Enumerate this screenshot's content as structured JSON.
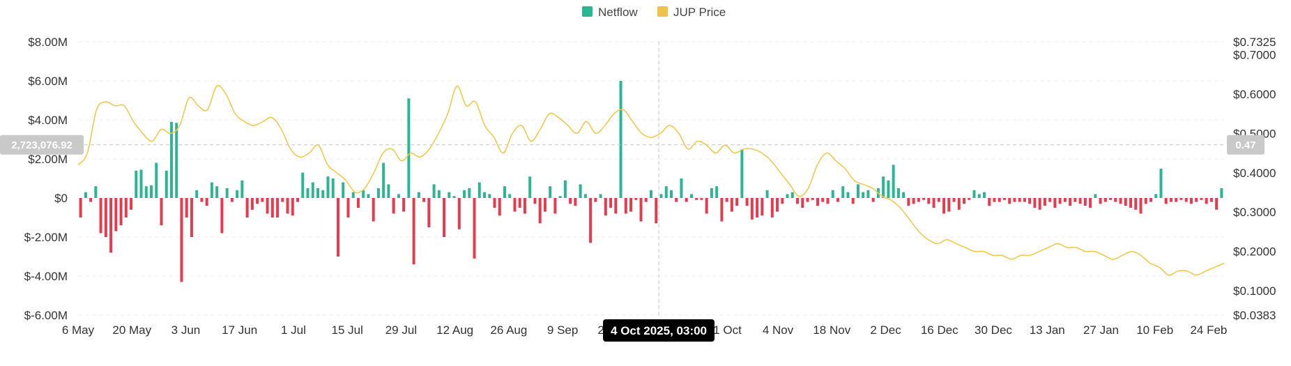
{
  "legend": [
    {
      "label": "Netflow",
      "color": "#2bb593",
      "icon": "square-swatch"
    },
    {
      "label": "JUP Price",
      "color": "#f0c24b",
      "icon": "square-swatch"
    }
  ],
  "chart_data": {
    "type": "bar+line",
    "left_axis": {
      "ticks": [
        {
          "value": 8000000,
          "label": "$8.00M"
        },
        {
          "value": 6000000,
          "label": "$6.00M"
        },
        {
          "value": 4000000,
          "label": "$4.00M"
        },
        {
          "value": 2000000,
          "label": "$2.00M"
        },
        {
          "value": 0,
          "label": "$0"
        },
        {
          "value": -2000000,
          "label": "$-2.00M"
        },
        {
          "value": -4000000,
          "label": "$-4.00M"
        },
        {
          "value": -6000000,
          "label": "$-6.00M"
        }
      ],
      "range": [
        -6000000,
        8000000
      ]
    },
    "right_axis": {
      "ticks": [
        {
          "value": 0.7325,
          "label": "$0.7325"
        },
        {
          "value": 0.7,
          "label": "$0.7000"
        },
        {
          "value": 0.6,
          "label": "$0.6000"
        },
        {
          "value": 0.5,
          "label": "$0.5000"
        },
        {
          "value": 0.4,
          "label": "$0.4000"
        },
        {
          "value": 0.3,
          "label": "$0.3000"
        },
        {
          "value": 0.2,
          "label": "$0.2000"
        },
        {
          "value": 0.1,
          "label": "$0.1000"
        },
        {
          "value": 0.0383,
          "label": "$0.0383"
        }
      ],
      "range": [
        0.0383,
        0.7325
      ]
    },
    "x_ticks": [
      "6 May",
      "20 May",
      "3 Jun",
      "17 Jun",
      "1 Jul",
      "15 Jul",
      "29 Jul",
      "12 Aug",
      "26 Aug",
      "9 Sep",
      "23 Sep",
      "7 Oct",
      "21 Oct",
      "4 Nov",
      "18 Nov",
      "2 Dec",
      "16 Dec",
      "30 Dec",
      "13 Jan",
      "27 Jan",
      "10 Feb",
      "24 Feb"
    ],
    "x_start": "2025-05-06",
    "x_end": "2026-02-28",
    "netflow_series": {
      "name": "Netflow",
      "color_positive": "#2bb593",
      "color_negative": "#e83a4e",
      "values": [
        -1000000,
        300000,
        -200000,
        600000,
        -1800000,
        -2000000,
        -2800000,
        -1700000,
        -1400000,
        -1000000,
        -600000,
        1400000,
        1450000,
        600000,
        650000,
        1800000,
        -1400000,
        1400000,
        3900000,
        3850000,
        -4300000,
        -1000000,
        -2000000,
        400000,
        -200000,
        -400000,
        800000,
        600000,
        -1800000,
        500000,
        -200000,
        400000,
        900000,
        -1000000,
        -600000,
        -300000,
        -200000,
        -800000,
        -1000000,
        -1000000,
        -200000,
        -800000,
        -900000,
        -200000,
        1300000,
        500000,
        800000,
        500000,
        400000,
        1100000,
        1000000,
        -3000000,
        800000,
        -1000000,
        300000,
        -500000,
        400000,
        200000,
        -1200000,
        500000,
        1800000,
        700000,
        -800000,
        200000,
        -700000,
        5100000,
        -3400000,
        300000,
        -200000,
        -1500000,
        700000,
        400000,
        -2000000,
        300000,
        100000,
        -1600000,
        400000,
        500000,
        -3100000,
        800000,
        300000,
        200000,
        -500000,
        -900000,
        600000,
        200000,
        -700000,
        -500000,
        -800000,
        1100000,
        -300000,
        -1300000,
        -700000,
        600000,
        -800000,
        100000,
        900000,
        -300000,
        -400000,
        700000,
        200000,
        -2300000,
        -200000,
        200000,
        -900000,
        -500000,
        -800000,
        6000000,
        -800000,
        -700000,
        -100000,
        -1200000,
        -200000,
        400000,
        -1300000,
        200000,
        600000,
        400000,
        -200000,
        1000000,
        -200000,
        200000,
        -100000,
        -100000,
        -800000,
        500000,
        600000,
        -1200000,
        -200000,
        -700000,
        -400000,
        2500000,
        -400000,
        -1100000,
        -1000000,
        -900000,
        400000,
        -1000000,
        -700000,
        -300000,
        200000,
        300000,
        -300000,
        -500000,
        -200000,
        -100000,
        -400000,
        -200000,
        -300000,
        400000,
        -200000,
        600000,
        300000,
        -300000,
        700000,
        300000,
        400000,
        -200000,
        500000,
        1100000,
        900000,
        1700000,
        500000,
        300000,
        -400000,
        -300000,
        -200000,
        -100000,
        -300000,
        -500000,
        -200000,
        -800000,
        -700000,
        -200000,
        -600000,
        -300000,
        -100000,
        400000,
        200000,
        300000,
        -400000,
        -200000,
        -200000,
        -100000,
        -300000,
        -200000,
        -200000,
        -200000,
        -300000,
        -500000,
        -600000,
        -400000,
        -200000,
        -500000,
        -300000,
        -200000,
        -400000,
        -200000,
        -300000,
        -400000,
        -500000,
        200000,
        -300000,
        -200000,
        -100000,
        -200000,
        -300000,
        -400000,
        -500000,
        -600000,
        -800000,
        -300000,
        -200000,
        200000,
        1500000,
        -300000,
        -200000,
        -200000,
        -100000,
        -200000,
        -300000,
        -200000,
        -100000,
        -300000,
        -200000,
        -600000,
        500000
      ]
    },
    "price_series": {
      "name": "JUP Price",
      "color": "#f5c84c",
      "values": [
        0.42,
        0.45,
        0.56,
        0.58,
        0.57,
        0.57,
        0.53,
        0.5,
        0.48,
        0.51,
        0.5,
        0.52,
        0.59,
        0.57,
        0.56,
        0.62,
        0.6,
        0.55,
        0.53,
        0.52,
        0.53,
        0.54,
        0.51,
        0.46,
        0.44,
        0.45,
        0.47,
        0.42,
        0.4,
        0.38,
        0.35,
        0.36,
        0.4,
        0.45,
        0.46,
        0.43,
        0.45,
        0.44,
        0.46,
        0.5,
        0.55,
        0.62,
        0.57,
        0.58,
        0.52,
        0.49,
        0.45,
        0.5,
        0.52,
        0.48,
        0.51,
        0.55,
        0.54,
        0.52,
        0.5,
        0.53,
        0.5,
        0.52,
        0.55,
        0.56,
        0.53,
        0.5,
        0.49,
        0.5,
        0.52,
        0.5,
        0.46,
        0.48,
        0.47,
        0.45,
        0.47,
        0.45,
        0.46,
        0.46,
        0.45,
        0.43,
        0.4,
        0.37,
        0.34,
        0.36,
        0.42,
        0.45,
        0.43,
        0.41,
        0.38,
        0.37,
        0.36,
        0.34,
        0.33,
        0.31,
        0.28,
        0.25,
        0.23,
        0.22,
        0.23,
        0.22,
        0.21,
        0.2,
        0.2,
        0.19,
        0.19,
        0.18,
        0.19,
        0.19,
        0.2,
        0.21,
        0.22,
        0.21,
        0.21,
        0.2,
        0.2,
        0.19,
        0.18,
        0.19,
        0.2,
        0.19,
        0.17,
        0.16,
        0.14,
        0.15,
        0.15,
        0.14,
        0.15,
        0.16,
        0.17
      ]
    },
    "crosshair": {
      "x": "2025-10-04",
      "tooltip_label": "4 Oct 2025, 03:00",
      "left_value": 2723076.92,
      "left_label": "2,723,076.92",
      "right_value": 0.47,
      "right_label": "0.47"
    },
    "grid": true,
    "legend_position": "top-center"
  }
}
